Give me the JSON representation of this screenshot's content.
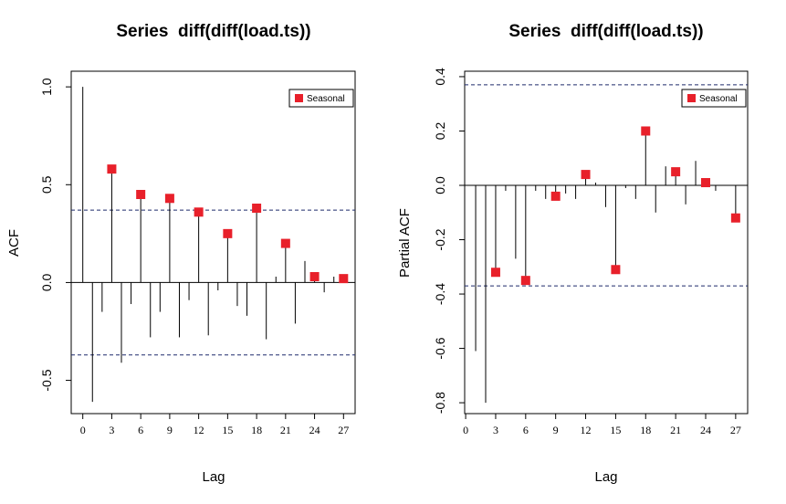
{
  "chart_data": [
    {
      "type": "acf",
      "title": "Series  diff(diff(load.ts))",
      "xlabel": "Lag",
      "ylabel": "ACF",
      "xlim": [
        -1.2,
        28.2
      ],
      "ylim": [
        -0.67,
        1.08
      ],
      "xticks": [
        "0",
        "3",
        "6",
        "9",
        "12",
        "15",
        "18",
        "21",
        "24",
        "27"
      ],
      "yticks": [
        "-0.5",
        "0.0",
        "0.5",
        "1.0"
      ],
      "confidence_bound": 0.37,
      "lags": [
        0,
        1,
        2,
        3,
        4,
        5,
        6,
        7,
        8,
        9,
        10,
        11,
        12,
        13,
        14,
        15,
        16,
        17,
        18,
        19,
        20,
        21,
        22,
        23,
        24,
        25,
        26,
        27
      ],
      "values": [
        1.0,
        -0.61,
        -0.15,
        0.58,
        -0.41,
        -0.11,
        0.45,
        -0.28,
        -0.15,
        0.43,
        -0.28,
        -0.09,
        0.36,
        -0.27,
        -0.04,
        0.25,
        -0.12,
        -0.17,
        0.38,
        -0.29,
        0.03,
        0.2,
        -0.21,
        0.11,
        0.03,
        -0.05,
        0.03,
        0.02
      ],
      "seasonal_lags": [
        3,
        6,
        9,
        12,
        15,
        18,
        21,
        24,
        27
      ],
      "legend": {
        "label": "Seasonal",
        "position": "top-right",
        "color": "#e8202a"
      }
    },
    {
      "type": "pacf",
      "title": "Series  diff(diff(load.ts))",
      "xlabel": "Lag",
      "ylabel": "Partial ACF",
      "xlim": [
        -0.1,
        28.2
      ],
      "ylim": [
        -0.84,
        0.42
      ],
      "xticks": [
        "0",
        "3",
        "6",
        "9",
        "12",
        "15",
        "18",
        "21",
        "24",
        "27"
      ],
      "yticks": [
        "-0.8",
        "-0.6",
        "-0.4",
        "-0.2",
        "0.0",
        "0.2",
        "0.4"
      ],
      "confidence_bound": 0.37,
      "lags": [
        1,
        2,
        3,
        4,
        5,
        6,
        7,
        8,
        9,
        10,
        11,
        12,
        13,
        14,
        15,
        16,
        17,
        18,
        19,
        20,
        21,
        22,
        23,
        24,
        25,
        26,
        27
      ],
      "values": [
        -0.61,
        -0.8,
        -0.32,
        -0.02,
        -0.27,
        -0.35,
        -0.02,
        -0.05,
        -0.04,
        -0.03,
        -0.05,
        0.04,
        0.01,
        -0.08,
        -0.31,
        -0.01,
        -0.05,
        0.2,
        -0.1,
        0.07,
        0.05,
        -0.07,
        0.09,
        0.01,
        -0.02,
        0.0,
        -0.12
      ],
      "seasonal_lags": [
        3,
        6,
        9,
        12,
        15,
        18,
        21,
        24,
        27
      ],
      "legend": {
        "label": "Seasonal",
        "position": "top-right",
        "color": "#e8202a"
      }
    }
  ]
}
